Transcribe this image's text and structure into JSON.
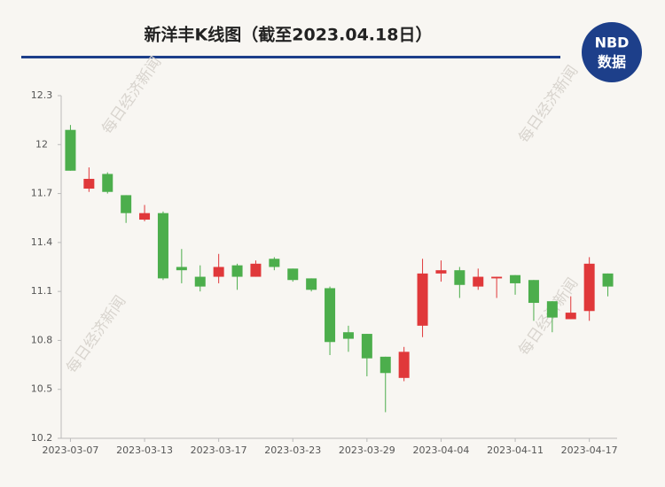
{
  "chart_data": {
    "type": "candlestick",
    "title": "新洋丰K线图（截至2023.04.18日）",
    "logo": {
      "top": "NBD",
      "bottom": "数据"
    },
    "watermark": "每日经济新闻",
    "categories": [
      "2023-03-07",
      null,
      null,
      null,
      "2023-03-13",
      null,
      null,
      null,
      "2023-03-17",
      null,
      null,
      null,
      "2023-03-23",
      null,
      null,
      null,
      "2023-03-29",
      null,
      null,
      null,
      "2023-04-04",
      null,
      null,
      null,
      "2023-04-11",
      null,
      null,
      null,
      "2023-04-17",
      null
    ],
    "open": [
      12.09,
      11.73,
      11.82,
      11.69,
      11.54,
      11.58,
      11.25,
      11.19,
      11.19,
      11.26,
      11.19,
      11.3,
      11.24,
      11.18,
      11.12,
      10.85,
      10.84,
      10.7,
      10.57,
      10.89,
      11.21,
      11.23,
      11.13,
      11.18,
      11.2,
      11.17,
      11.04,
      10.93,
      10.98,
      11.21
    ],
    "high": [
      12.12,
      11.86,
      11.83,
      11.69,
      11.63,
      11.59,
      11.36,
      11.26,
      11.33,
      11.27,
      11.29,
      11.31,
      11.24,
      11.18,
      11.13,
      10.89,
      10.84,
      10.7,
      10.76,
      11.3,
      11.29,
      11.25,
      11.24,
      11.19,
      11.2,
      11.17,
      11.04,
      11.07,
      11.31,
      11.21
    ],
    "low": [
      11.84,
      11.71,
      11.7,
      11.52,
      11.53,
      11.17,
      11.15,
      11.1,
      11.15,
      11.11,
      11.19,
      11.23,
      11.16,
      11.1,
      10.71,
      10.73,
      10.58,
      10.36,
      10.55,
      10.82,
      11.16,
      11.06,
      11.11,
      11.06,
      11.08,
      10.92,
      10.85,
      10.93,
      10.92,
      11.07
    ],
    "close": [
      11.84,
      11.79,
      11.71,
      11.58,
      11.58,
      11.18,
      11.23,
      11.13,
      11.25,
      11.19,
      11.27,
      11.25,
      11.17,
      11.11,
      10.79,
      10.81,
      10.69,
      10.6,
      10.73,
      11.21,
      11.23,
      11.14,
      11.19,
      11.19,
      11.15,
      11.03,
      10.94,
      10.97,
      11.27,
      11.13
    ],
    "up_color": "#e0383a",
    "down_color": "#4cae4c",
    "ylim": [
      10.2,
      12.3
    ],
    "yticks": [
      10.2,
      10.5,
      10.8,
      11.1,
      11.4,
      11.7,
      12,
      12.3
    ]
  }
}
